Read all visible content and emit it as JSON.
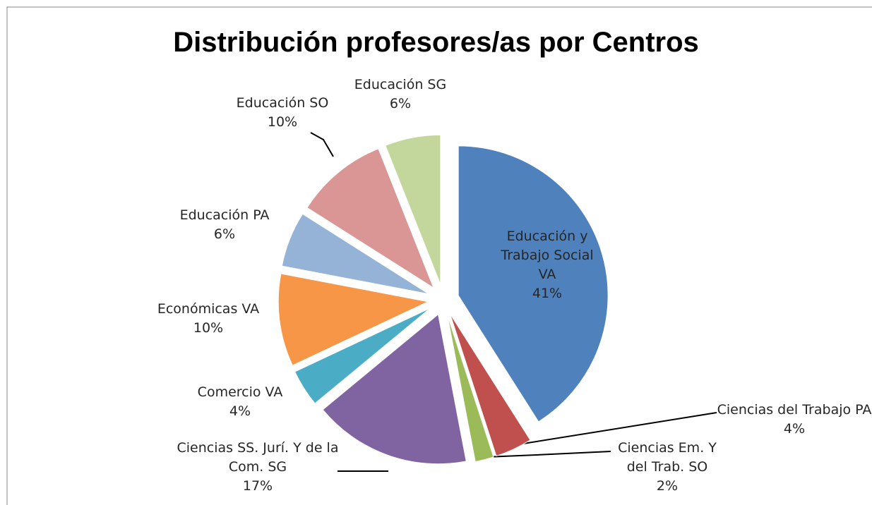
{
  "chart_data": {
    "type": "pie",
    "title": "Distribución profesores/as por Centros",
    "categories": [
      "Educación y Trabajo Social VA",
      "Ciencias del Trabajo PA",
      "Ciencias Em. Y del Trab. SO",
      "Ciencias SS. Jurí. Y de la Com. SG",
      "Comercio VA",
      "Económicas VA",
      "Educación PA",
      "Educación SO",
      "Educación SG"
    ],
    "values": [
      41,
      4,
      2,
      17,
      4,
      10,
      6,
      10,
      6
    ],
    "value_labels": [
      "41%",
      "4%",
      "2%",
      "17%",
      "4%",
      "10%",
      "6%",
      "10%",
      "6%"
    ],
    "colors": [
      "#4f81bd",
      "#c0504d",
      "#9bbb59",
      "#8064a2",
      "#4bacc6",
      "#f79646",
      "#95b3d7",
      "#d99694",
      "#c3d69b"
    ]
  }
}
